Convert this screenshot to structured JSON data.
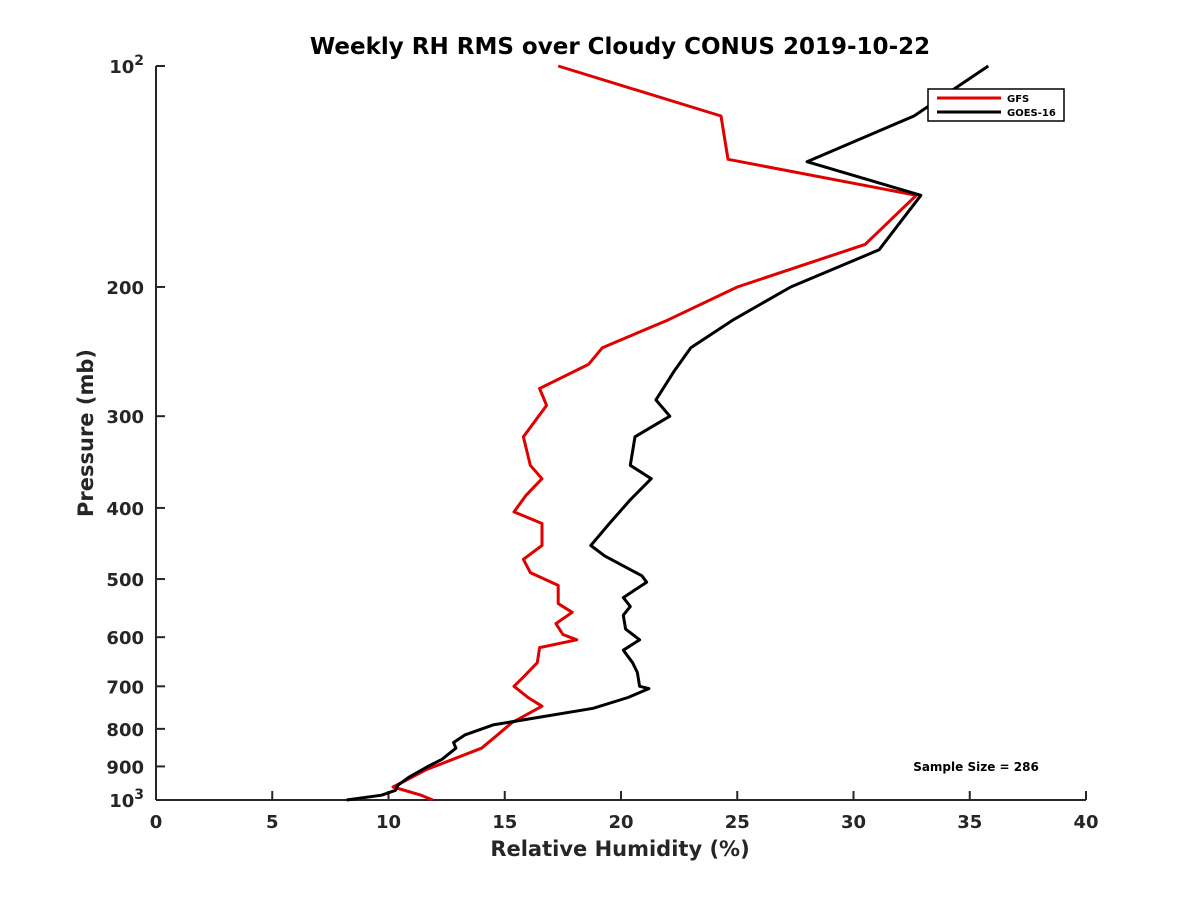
{
  "chart_data": {
    "type": "line",
    "title": "Weekly RH RMS over Cloudy CONUS 2019-10-22",
    "xlabel": "Relative Humidity (%)",
    "ylabel": "Pressure (mb)",
    "xlim": [
      0,
      40
    ],
    "ylim": [
      100,
      1000
    ],
    "y_scale": "log",
    "y_reversed": true,
    "x_ticks": [
      0,
      5,
      10,
      15,
      20,
      25,
      30,
      35,
      40
    ],
    "x_tick_labels": [
      "0",
      "5",
      "10",
      "15",
      "20",
      "25",
      "30",
      "35",
      "40"
    ],
    "y_ticks": [
      {
        "value": 100,
        "label": "10",
        "sup": "2"
      },
      {
        "value": 200,
        "label": "200",
        "sup": ""
      },
      {
        "value": 300,
        "label": "300",
        "sup": ""
      },
      {
        "value": 400,
        "label": "400",
        "sup": ""
      },
      {
        "value": 500,
        "label": "500",
        "sup": ""
      },
      {
        "value": 600,
        "label": "600",
        "sup": ""
      },
      {
        "value": 700,
        "label": "700",
        "sup": ""
      },
      {
        "value": 800,
        "label": "800",
        "sup": ""
      },
      {
        "value": 900,
        "label": "900",
        "sup": ""
      },
      {
        "value": 1000,
        "label": "10",
        "sup": "3"
      }
    ],
    "grid": false,
    "legend_position": "top-right",
    "annotation": "Sample Size = 286",
    "series": [
      {
        "name": "GFS",
        "color": "#e00000",
        "points": [
          [
            17.3,
            100
          ],
          [
            24.3,
            117
          ],
          [
            24.6,
            134
          ],
          [
            32.7,
            150
          ],
          [
            30.5,
            175
          ],
          [
            25.0,
            200
          ],
          [
            22.0,
            222
          ],
          [
            19.2,
            242
          ],
          [
            18.6,
            255
          ],
          [
            16.5,
            275
          ],
          [
            16.8,
            290
          ],
          [
            15.8,
            320
          ],
          [
            16.1,
            350
          ],
          [
            16.6,
            365
          ],
          [
            15.9,
            385
          ],
          [
            15.4,
            405
          ],
          [
            16.6,
            420
          ],
          [
            16.6,
            450
          ],
          [
            15.8,
            470
          ],
          [
            16.1,
            490
          ],
          [
            17.3,
            510
          ],
          [
            17.3,
            540
          ],
          [
            17.9,
            555
          ],
          [
            17.2,
            575
          ],
          [
            17.5,
            595
          ],
          [
            18.1,
            605
          ],
          [
            16.5,
            620
          ],
          [
            16.4,
            650
          ],
          [
            15.8,
            680
          ],
          [
            15.4,
            700
          ],
          [
            16.0,
            725
          ],
          [
            16.6,
            745
          ],
          [
            15.3,
            785
          ],
          [
            14.6,
            820
          ],
          [
            14.0,
            850
          ],
          [
            11.6,
            910
          ],
          [
            10.2,
            960
          ],
          [
            11.4,
            985
          ],
          [
            11.9,
            1000
          ]
        ]
      },
      {
        "name": "GOES-16",
        "color": "#000000",
        "points": [
          [
            35.8,
            100
          ],
          [
            32.6,
            117
          ],
          [
            28.0,
            135
          ],
          [
            32.9,
            150
          ],
          [
            31.1,
            178
          ],
          [
            27.3,
            200
          ],
          [
            24.8,
            222
          ],
          [
            23.0,
            242
          ],
          [
            22.3,
            260
          ],
          [
            21.5,
            285
          ],
          [
            22.1,
            300
          ],
          [
            20.6,
            320
          ],
          [
            20.4,
            350
          ],
          [
            21.3,
            365
          ],
          [
            20.4,
            390
          ],
          [
            19.5,
            420
          ],
          [
            18.7,
            450
          ],
          [
            19.3,
            465
          ],
          [
            20.9,
            495
          ],
          [
            21.1,
            505
          ],
          [
            20.1,
            530
          ],
          [
            20.4,
            545
          ],
          [
            20.1,
            560
          ],
          [
            20.2,
            585
          ],
          [
            20.8,
            605
          ],
          [
            20.1,
            625
          ],
          [
            20.5,
            650
          ],
          [
            20.7,
            670
          ],
          [
            20.8,
            700
          ],
          [
            21.2,
            705
          ],
          [
            20.3,
            725
          ],
          [
            18.8,
            750
          ],
          [
            14.5,
            790
          ],
          [
            13.3,
            815
          ],
          [
            12.8,
            835
          ],
          [
            12.9,
            850
          ],
          [
            12.3,
            880
          ],
          [
            11.7,
            900
          ],
          [
            10.9,
            930
          ],
          [
            10.4,
            955
          ],
          [
            10.3,
            970
          ],
          [
            9.7,
            985
          ],
          [
            8.2,
            1000
          ]
        ]
      }
    ]
  }
}
